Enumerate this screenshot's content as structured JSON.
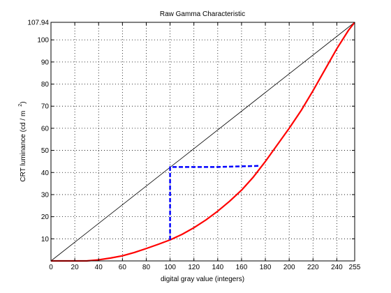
{
  "chart_data": {
    "type": "line",
    "title": "Raw Gamma Characteristic",
    "xlabel": "digital gray value (integers)",
    "ylabel": "CRT luminance (cd / m",
    "ylabel_superscript": "2",
    "ylabel_suffix": ")",
    "xlim": [
      0,
      255
    ],
    "ylim": [
      0,
      107.94
    ],
    "x_ticks": [
      0,
      20,
      40,
      60,
      80,
      100,
      120,
      140,
      160,
      180,
      200,
      220,
      240,
      255
    ],
    "x_tick_labels": [
      "0",
      "20",
      "40",
      "60",
      "80",
      "100",
      "120",
      "140",
      "160",
      "180",
      "200",
      "220",
      "240",
      "255"
    ],
    "y_ticks": [
      10,
      20,
      30,
      40,
      50,
      60,
      70,
      80,
      90,
      100,
      107.94
    ],
    "y_tick_labels": [
      "10",
      "20",
      "30",
      "40",
      "50",
      "60",
      "70",
      "80",
      "90",
      "100",
      "107.94"
    ],
    "grid": true,
    "colors": {
      "curve": "#ff0000",
      "linear": "#000000",
      "guide": "#0000ff"
    },
    "series": [
      {
        "style": "linear",
        "x": [
          0,
          255
        ],
        "y": [
          0,
          107.94
        ]
      },
      {
        "style": "curve",
        "x": [
          0,
          10,
          20,
          30,
          40,
          50,
          60,
          70,
          80,
          90,
          100,
          110,
          120,
          130,
          140,
          150,
          160,
          170,
          180,
          190,
          200,
          210,
          220,
          230,
          240,
          250,
          255
        ],
        "y": [
          0,
          0,
          0,
          0,
          0.5,
          1.3,
          2.3,
          3.8,
          5.6,
          7.5,
          9.5,
          12,
          15,
          18.5,
          22.5,
          27,
          32,
          38,
          45,
          52.5,
          60,
          68,
          77,
          86.5,
          96,
          104.5,
          107.94
        ]
      },
      {
        "style": "guide",
        "x": [
          100,
          100,
          140,
          175
        ],
        "y": [
          9.5,
          42.5,
          42.5,
          43
        ]
      }
    ]
  }
}
